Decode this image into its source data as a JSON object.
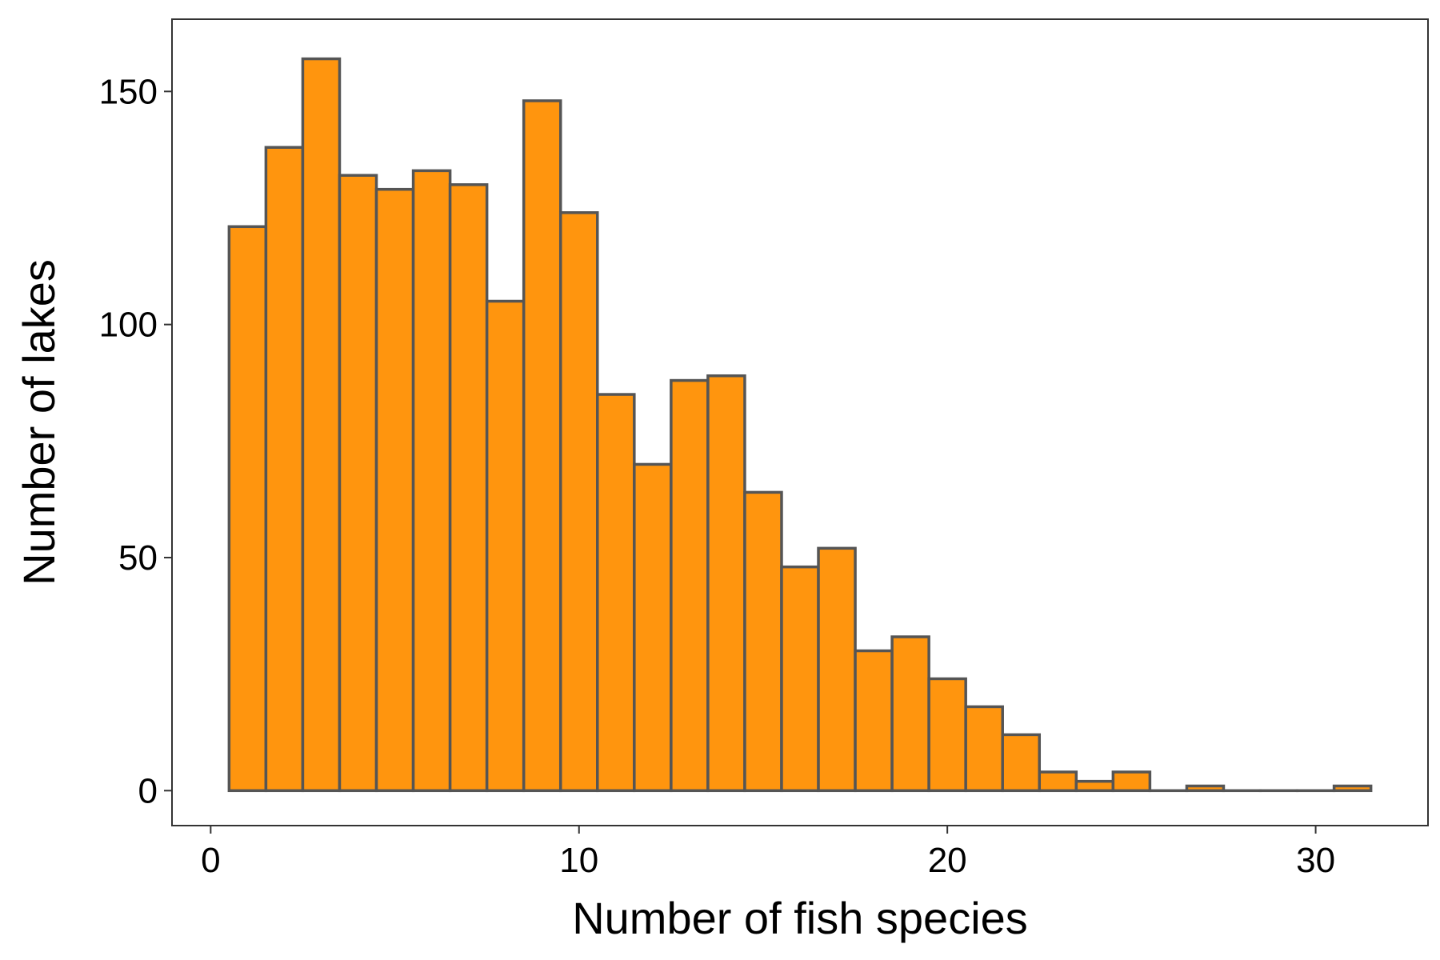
{
  "chart_data": {
    "type": "bar",
    "subtype": "histogram",
    "xlabel": "Number of fish species",
    "ylabel": "Number of lakes",
    "xlim": [
      -1.05,
      33.05
    ],
    "ylim": [
      -7.5,
      165.5
    ],
    "bin_width": 1,
    "bins": [
      {
        "center": 1,
        "count": 121
      },
      {
        "center": 2,
        "count": 138
      },
      {
        "center": 3,
        "count": 157
      },
      {
        "center": 4,
        "count": 132
      },
      {
        "center": 5,
        "count": 129
      },
      {
        "center": 6,
        "count": 133
      },
      {
        "center": 7,
        "count": 130
      },
      {
        "center": 8,
        "count": 105
      },
      {
        "center": 9,
        "count": 148
      },
      {
        "center": 10,
        "count": 124
      },
      {
        "center": 11,
        "count": 85
      },
      {
        "center": 12,
        "count": 70
      },
      {
        "center": 13,
        "count": 88
      },
      {
        "center": 14,
        "count": 89
      },
      {
        "center": 15,
        "count": 64
      },
      {
        "center": 16,
        "count": 48
      },
      {
        "center": 17,
        "count": 52
      },
      {
        "center": 18,
        "count": 30
      },
      {
        "center": 19,
        "count": 33
      },
      {
        "center": 20,
        "count": 24
      },
      {
        "center": 21,
        "count": 18
      },
      {
        "center": 22,
        "count": 12
      },
      {
        "center": 23,
        "count": 4
      },
      {
        "center": 24,
        "count": 2
      },
      {
        "center": 25,
        "count": 4
      },
      {
        "center": 26,
        "count": 0
      },
      {
        "center": 27,
        "count": 1
      },
      {
        "center": 28,
        "count": 0
      },
      {
        "center": 29,
        "count": 0
      },
      {
        "center": 30,
        "count": 0
      },
      {
        "center": 31,
        "count": 1
      }
    ],
    "x_ticks": [
      0,
      10,
      20,
      30
    ],
    "y_ticks": [
      0,
      50,
      100,
      150
    ],
    "x_tick_labels": [
      "0",
      "10",
      "20",
      "30"
    ],
    "y_tick_labels": [
      "0",
      "50",
      "100",
      "150"
    ],
    "bar_fill": "#ff950e",
    "bar_stroke": "#555555",
    "grid": false,
    "legend": "none"
  }
}
